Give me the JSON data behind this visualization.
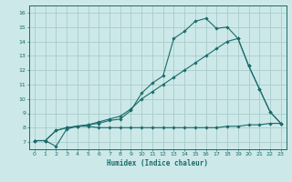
{
  "xlabel": "Humidex (Indice chaleur)",
  "ylabel": "",
  "bg_color": "#cce8e8",
  "grid_color": "#aacccc",
  "line_color": "#1a6b6b",
  "xlim": [
    -0.5,
    23.5
  ],
  "ylim": [
    6.5,
    16.5
  ],
  "xticks": [
    0,
    1,
    2,
    3,
    4,
    5,
    6,
    7,
    8,
    9,
    10,
    11,
    12,
    13,
    14,
    15,
    16,
    17,
    18,
    19,
    20,
    21,
    22,
    23
  ],
  "yticks": [
    7,
    8,
    9,
    10,
    11,
    12,
    13,
    14,
    15,
    16
  ],
  "line1_x": [
    0,
    1,
    2,
    3,
    4,
    5,
    6,
    7,
    8,
    9,
    10,
    11,
    12,
    13,
    14,
    15,
    16,
    17,
    18,
    19,
    20,
    21,
    22,
    23
  ],
  "line1_y": [
    7.1,
    7.1,
    6.7,
    7.9,
    8.1,
    8.2,
    8.3,
    8.5,
    8.6,
    9.2,
    10.4,
    11.1,
    11.6,
    14.2,
    14.7,
    15.4,
    15.6,
    14.9,
    15.0,
    14.2,
    12.3,
    10.7,
    9.1,
    8.3
  ],
  "line2_x": [
    0,
    1,
    2,
    3,
    4,
    5,
    6,
    7,
    8,
    9,
    10,
    11,
    12,
    13,
    14,
    15,
    16,
    17,
    18,
    19,
    20,
    21,
    22,
    23
  ],
  "line2_y": [
    7.1,
    7.1,
    7.8,
    8.0,
    8.1,
    8.2,
    8.4,
    8.6,
    8.8,
    9.3,
    10.0,
    10.5,
    11.0,
    11.5,
    12.0,
    12.5,
    13.0,
    13.5,
    14.0,
    14.2,
    12.3,
    10.7,
    9.1,
    8.3
  ],
  "line3_x": [
    0,
    1,
    2,
    3,
    4,
    5,
    6,
    7,
    8,
    9,
    10,
    11,
    12,
    13,
    14,
    15,
    16,
    17,
    18,
    19,
    20,
    21,
    22,
    23
  ],
  "line3_y": [
    7.1,
    7.1,
    7.8,
    8.0,
    8.1,
    8.1,
    8.0,
    8.0,
    8.0,
    8.0,
    8.0,
    8.0,
    8.0,
    8.0,
    8.0,
    8.0,
    8.0,
    8.0,
    8.1,
    8.1,
    8.2,
    8.2,
    8.3,
    8.3
  ]
}
